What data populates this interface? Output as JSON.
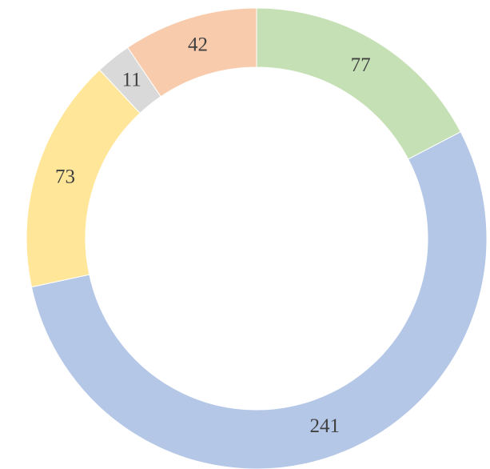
{
  "chart_data": {
    "type": "donut",
    "values": [
      77,
      241,
      73,
      11,
      42
    ],
    "colors": [
      "#c5e0b4",
      "#b4c7e7",
      "#ffe699",
      "#d9d9d9",
      "#f8cbad"
    ],
    "direction": "clockwise",
    "start": "top"
  }
}
